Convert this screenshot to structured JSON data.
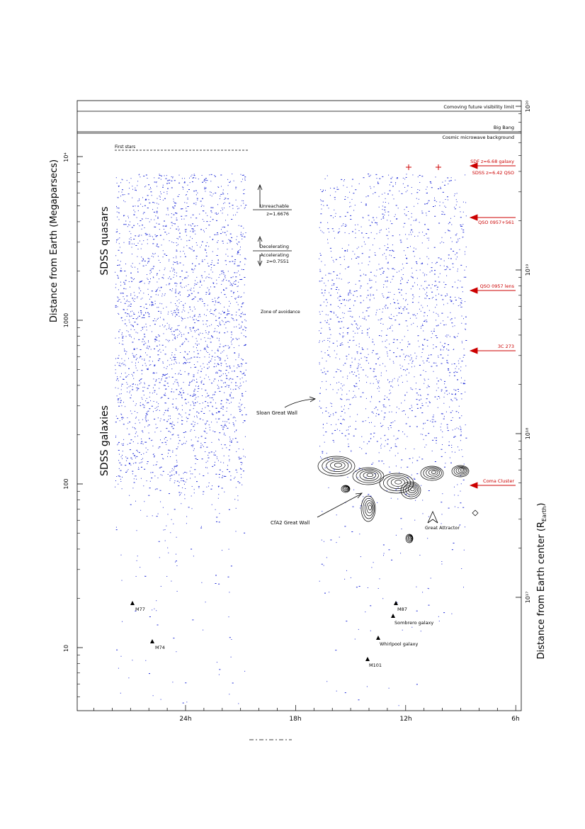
{
  "chart_data": {
    "type": "scatter",
    "title": "",
    "ylabel": "Distance from Earth (Megaparsecs)",
    "ylabel_right": "Distance from Earth center (R",
    "ylabel_right_sub": "Earth",
    "ylabel_right_close": ")",
    "xlabel": "",
    "x_ticks": [
      "24h",
      "18h",
      "12h",
      "6h"
    ],
    "y_ticks": [
      "10",
      "100",
      "1000",
      "10⁴"
    ],
    "y_right_ticks": [
      "10¹⁷",
      "10¹⁸",
      "10¹⁹",
      "10²⁰"
    ],
    "ylim": [
      4,
      15000
    ],
    "y_scale": "log",
    "boundary_lines": [
      {
        "label": "Comoving future visibility limit"
      },
      {
        "label": "Big Bang"
      },
      {
        "label": "Cosmic microwave background"
      }
    ],
    "first_stars_label": "First stars",
    "side_labels": {
      "quasars": "SDSS quasars",
      "galaxies": "SDSS galaxies"
    },
    "redshift_markers": [
      {
        "top": "Unreachable",
        "bottom": "z=1.6676"
      },
      {
        "top": "Decelerating",
        "bottom": "Accelerating",
        "extra": "z=0.7551"
      }
    ],
    "zone_label": "Zone of avoidance",
    "annotations": [
      {
        "label": "Sloan Great Wall"
      },
      {
        "label": "CfA2 Great Wall"
      },
      {
        "label": "Great Attractor"
      }
    ],
    "red_labels": [
      {
        "label": "SDF z=6.68 galaxy"
      },
      {
        "label": "SDSS z=6.42 QSO"
      },
      {
        "label": "QSO 0957+561"
      },
      {
        "label": "QSO 0957 lens"
      },
      {
        "label": "3C 273"
      },
      {
        "label": "Coma Cluster"
      }
    ],
    "named_objects": [
      {
        "label": "M77"
      },
      {
        "label": "M74"
      },
      {
        "label": "M87"
      },
      {
        "label": "Sombrero galaxy"
      },
      {
        "label": "Whirlpool galaxy"
      },
      {
        "label": "M101"
      }
    ],
    "series": [
      {
        "values_note": "SDSS survey points (procedurally rendered)"
      }
    ],
    "grid": false,
    "colors": {
      "data": "#1f2bd6",
      "annotations": "#cc0000",
      "axes": "#000000"
    }
  }
}
